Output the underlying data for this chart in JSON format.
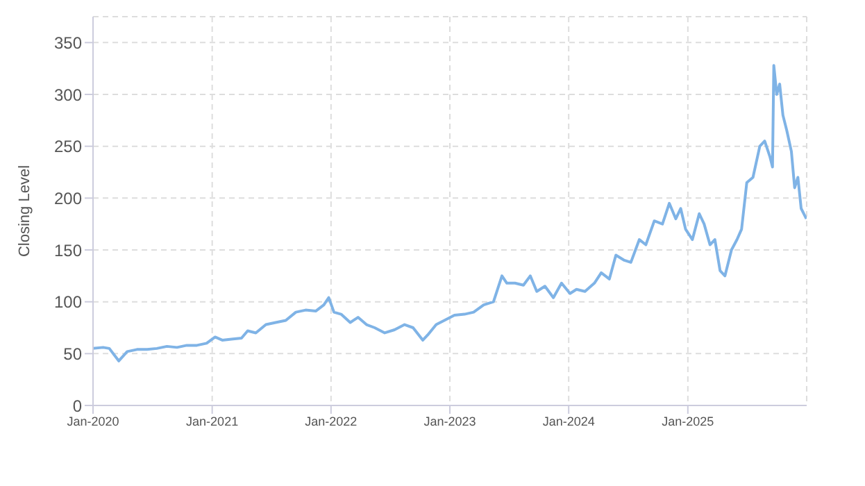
{
  "chart_data": {
    "type": "line",
    "ylabel": "Closing Level",
    "x": [
      "2020-01-01",
      "2020-02-01",
      "2020-02-20",
      "2020-03-20",
      "2020-04-15",
      "2020-05-15",
      "2020-06-15",
      "2020-07-15",
      "2020-08-15",
      "2020-09-15",
      "2020-10-15",
      "2020-11-15",
      "2020-12-15",
      "2021-01-10",
      "2021-02-01",
      "2021-03-01",
      "2021-04-01",
      "2021-04-20",
      "2021-05-15",
      "2021-06-15",
      "2021-07-15",
      "2021-08-15",
      "2021-09-15",
      "2021-10-15",
      "2021-11-15",
      "2021-12-10",
      "2021-12-25",
      "2022-01-10",
      "2022-02-01",
      "2022-03-01",
      "2022-03-25",
      "2022-04-20",
      "2022-05-15",
      "2022-06-15",
      "2022-07-15",
      "2022-08-15",
      "2022-09-10",
      "2022-10-10",
      "2022-10-25",
      "2022-11-20",
      "2022-12-15",
      "2023-01-15",
      "2023-02-15",
      "2023-03-15",
      "2023-04-15",
      "2023-05-15",
      "2023-06-10",
      "2023-06-25",
      "2023-07-20",
      "2023-08-15",
      "2023-09-05",
      "2023-09-25",
      "2023-10-20",
      "2023-11-15",
      "2023-12-10",
      "2024-01-05",
      "2024-01-25",
      "2024-02-20",
      "2024-03-20",
      "2024-04-10",
      "2024-05-05",
      "2024-05-25",
      "2024-06-20",
      "2024-07-10",
      "2024-08-05",
      "2024-08-25",
      "2024-09-20",
      "2024-10-15",
      "2024-11-05",
      "2024-11-25",
      "2024-12-10",
      "2024-12-25",
      "2025-01-15",
      "2025-02-05",
      "2025-02-20",
      "2025-03-10",
      "2025-03-25",
      "2025-04-10",
      "2025-04-25",
      "2025-05-15",
      "2025-06-01",
      "2025-06-15",
      "2025-07-01",
      "2025-07-20",
      "2025-08-10",
      "2025-08-25",
      "2025-09-10",
      "2025-09-18",
      "2025-09-22",
      "2025-10-01",
      "2025-10-10",
      "2025-10-20",
      "2025-11-01",
      "2025-11-15",
      "2025-11-25",
      "2025-12-05",
      "2025-12-15",
      "2025-12-31"
    ],
    "values": [
      55,
      56,
      55,
      43,
      52,
      54,
      54,
      55,
      57,
      56,
      58,
      58,
      60,
      66,
      63,
      64,
      65,
      72,
      70,
      78,
      80,
      82,
      90,
      92,
      91,
      97,
      104,
      90,
      88,
      80,
      85,
      78,
      75,
      70,
      73,
      78,
      75,
      63,
      68,
      78,
      82,
      87,
      88,
      90,
      97,
      100,
      125,
      118,
      118,
      116,
      125,
      110,
      115,
      104,
      118,
      108,
      112,
      110,
      118,
      128,
      122,
      145,
      140,
      138,
      160,
      155,
      178,
      175,
      195,
      180,
      190,
      170,
      160,
      185,
      175,
      155,
      160,
      130,
      125,
      150,
      160,
      170,
      215,
      220,
      250,
      255,
      240,
      230,
      328,
      300,
      310,
      280,
      265,
      245,
      210,
      220,
      190,
      180
    ],
    "color": "#7fb3e6",
    "ylim": [
      0,
      375
    ],
    "yticks": [
      0,
      50,
      100,
      150,
      200,
      250,
      300,
      350
    ],
    "xlim": [
      "2020-01-01",
      "2026-01-01"
    ],
    "xticks": [
      {
        "value": "2020-01-01",
        "label": "Jan-2020"
      },
      {
        "value": "2021-01-01",
        "label": "Jan-2021"
      },
      {
        "value": "2022-01-01",
        "label": "Jan-2022"
      },
      {
        "value": "2023-01-01",
        "label": "Jan-2023"
      },
      {
        "value": "2024-01-01",
        "label": "Jan-2024"
      },
      {
        "value": "2025-01-01",
        "label": "Jan-2025"
      }
    ],
    "grid": true,
    "marker": "none",
    "line_style": "solid",
    "legend": false
  }
}
